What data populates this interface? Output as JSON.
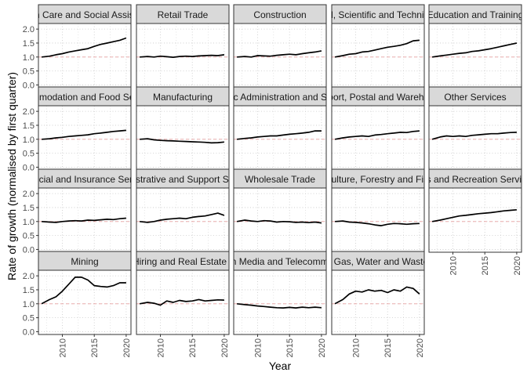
{
  "chart_data": {
    "type": "line",
    "facet": "wrap",
    "ncol": 5,
    "xlabel": "Year",
    "ylabel": "Rate of growth (normalised by first quarter)",
    "xlim": [
      2006.25,
      2020.75
    ],
    "ylim": [
      -0.1,
      2.2
    ],
    "xticks": [
      2010,
      2015,
      2020
    ],
    "yticks": [
      0.0,
      0.5,
      1.0,
      1.5,
      2.0
    ],
    "ytick_labels": [
      "0.0",
      "0.5",
      "1.0",
      "1.5",
      "2.0"
    ],
    "reference_line": 1.0,
    "grid": true,
    "colors": {
      "line": "#000000",
      "reference": "#e8a0a0",
      "strip": "#d9d9d9",
      "grid": "#c8c8c8"
    },
    "panels": [
      {
        "name": "Health Care and Social Assistance",
        "x": [
          2006.75,
          2008,
          2009,
          2010,
          2011,
          2012,
          2013,
          2014,
          2015,
          2016,
          2017,
          2018,
          2019,
          2020
        ],
        "y": [
          1.0,
          1.03,
          1.08,
          1.12,
          1.18,
          1.22,
          1.26,
          1.3,
          1.38,
          1.45,
          1.5,
          1.55,
          1.6,
          1.68
        ]
      },
      {
        "name": "Retail Trade",
        "x": [
          2006.75,
          2008,
          2009,
          2010,
          2011,
          2012,
          2013,
          2014,
          2015,
          2016,
          2017,
          2018,
          2019,
          2020
        ],
        "y": [
          1.0,
          1.02,
          1.0,
          1.03,
          1.01,
          0.99,
          1.02,
          1.03,
          1.02,
          1.04,
          1.05,
          1.06,
          1.05,
          1.08
        ]
      },
      {
        "name": "Construction",
        "x": [
          2006.75,
          2008,
          2009,
          2010,
          2011,
          2012,
          2013,
          2014,
          2015,
          2016,
          2017,
          2018,
          2019,
          2020
        ],
        "y": [
          1.0,
          1.02,
          1.0,
          1.05,
          1.04,
          1.03,
          1.06,
          1.08,
          1.1,
          1.08,
          1.12,
          1.15,
          1.18,
          1.22
        ]
      },
      {
        "name": "Professional, Scientific and Technical Services",
        "x": [
          2006.75,
          2008,
          2009,
          2010,
          2011,
          2012,
          2013,
          2014,
          2015,
          2016,
          2017,
          2018,
          2019,
          2020
        ],
        "y": [
          1.0,
          1.05,
          1.1,
          1.12,
          1.18,
          1.2,
          1.25,
          1.3,
          1.35,
          1.38,
          1.42,
          1.48,
          1.58,
          1.6
        ]
      },
      {
        "name": "Education and Training",
        "x": [
          2006.75,
          2008,
          2009,
          2010,
          2011,
          2012,
          2013,
          2014,
          2015,
          2016,
          2017,
          2018,
          2019,
          2020
        ],
        "y": [
          1.0,
          1.04,
          1.07,
          1.1,
          1.13,
          1.15,
          1.2,
          1.22,
          1.26,
          1.3,
          1.35,
          1.4,
          1.45,
          1.5
        ]
      },
      {
        "name": "Accommodation and Food Services",
        "x": [
          2006.75,
          2008,
          2009,
          2010,
          2011,
          2012,
          2013,
          2014,
          2015,
          2016,
          2017,
          2018,
          2019,
          2020
        ],
        "y": [
          1.0,
          1.02,
          1.05,
          1.07,
          1.1,
          1.12,
          1.14,
          1.16,
          1.2,
          1.22,
          1.25,
          1.28,
          1.3,
          1.32
        ]
      },
      {
        "name": "Manufacturing",
        "x": [
          2006.75,
          2008,
          2009,
          2010,
          2011,
          2012,
          2013,
          2014,
          2015,
          2016,
          2017,
          2018,
          2019,
          2020
        ],
        "y": [
          1.0,
          1.02,
          0.98,
          0.96,
          0.95,
          0.94,
          0.93,
          0.92,
          0.91,
          0.9,
          0.89,
          0.87,
          0.88,
          0.9
        ]
      },
      {
        "name": "Public Administration and Safety",
        "x": [
          2006.75,
          2008,
          2009,
          2010,
          2011,
          2012,
          2013,
          2014,
          2015,
          2016,
          2017,
          2018,
          2019,
          2020
        ],
        "y": [
          1.0,
          1.03,
          1.05,
          1.08,
          1.1,
          1.12,
          1.12,
          1.15,
          1.18,
          1.2,
          1.22,
          1.25,
          1.3,
          1.3
        ]
      },
      {
        "name": "Transport, Postal and Warehousing",
        "x": [
          2006.75,
          2008,
          2009,
          2010,
          2011,
          2012,
          2013,
          2014,
          2015,
          2016,
          2017,
          2018,
          2019,
          2020
        ],
        "y": [
          1.0,
          1.05,
          1.08,
          1.1,
          1.12,
          1.1,
          1.15,
          1.17,
          1.2,
          1.22,
          1.25,
          1.24,
          1.28,
          1.3
        ]
      },
      {
        "name": "Other Services",
        "x": [
          2006.75,
          2008,
          2009,
          2010,
          2011,
          2012,
          2013,
          2014,
          2015,
          2016,
          2017,
          2018,
          2019,
          2020
        ],
        "y": [
          1.0,
          1.08,
          1.12,
          1.1,
          1.12,
          1.1,
          1.14,
          1.16,
          1.18,
          1.2,
          1.2,
          1.22,
          1.24,
          1.25
        ]
      },
      {
        "name": "Financial and Insurance Services",
        "x": [
          2006.75,
          2008,
          2009,
          2010,
          2011,
          2012,
          2013,
          2014,
          2015,
          2016,
          2017,
          2018,
          2019,
          2020
        ],
        "y": [
          1.0,
          0.98,
          0.97,
          1.0,
          1.02,
          1.03,
          1.02,
          1.05,
          1.04,
          1.06,
          1.08,
          1.07,
          1.1,
          1.12
        ]
      },
      {
        "name": "Administrative and Support Services",
        "x": [
          2006.75,
          2008,
          2009,
          2010,
          2011,
          2012,
          2013,
          2014,
          2015,
          2016,
          2017,
          2018,
          2019,
          2020
        ],
        "y": [
          1.0,
          0.97,
          1.0,
          1.05,
          1.08,
          1.1,
          1.12,
          1.1,
          1.15,
          1.18,
          1.2,
          1.25,
          1.3,
          1.22
        ]
      },
      {
        "name": "Wholesale Trade",
        "x": [
          2006.75,
          2008,
          2009,
          2010,
          2011,
          2012,
          2013,
          2014,
          2015,
          2016,
          2017,
          2018,
          2019,
          2020
        ],
        "y": [
          1.0,
          1.05,
          1.02,
          1.0,
          1.03,
          1.02,
          0.98,
          1.0,
          0.99,
          0.97,
          0.98,
          0.96,
          0.98,
          0.95
        ]
      },
      {
        "name": "Agriculture, Forestry and Fishing",
        "x": [
          2006.75,
          2008,
          2009,
          2010,
          2011,
          2012,
          2013,
          2014,
          2015,
          2016,
          2017,
          2018,
          2019,
          2020
        ],
        "y": [
          1.0,
          1.02,
          0.98,
          0.97,
          0.95,
          0.92,
          0.88,
          0.85,
          0.9,
          0.93,
          0.92,
          0.9,
          0.92,
          0.93
        ]
      },
      {
        "name": "Arts and Recreation Services",
        "x": [
          2006.75,
          2008,
          2009,
          2010,
          2011,
          2012,
          2013,
          2014,
          2015,
          2016,
          2017,
          2018,
          2019,
          2020
        ],
        "y": [
          1.0,
          1.05,
          1.1,
          1.15,
          1.2,
          1.22,
          1.25,
          1.28,
          1.3,
          1.32,
          1.35,
          1.38,
          1.4,
          1.42
        ]
      },
      {
        "name": "Mining",
        "x": [
          2006.75,
          2008,
          2009,
          2010,
          2011,
          2012,
          2013,
          2014,
          2015,
          2016,
          2017,
          2018,
          2019,
          2020
        ],
        "y": [
          1.0,
          1.15,
          1.25,
          1.45,
          1.7,
          1.95,
          1.95,
          1.85,
          1.65,
          1.62,
          1.6,
          1.65,
          1.75,
          1.75
        ]
      },
      {
        "name": "Rental, Hiring and Real Estate Services",
        "x": [
          2006.75,
          2008,
          2009,
          2010,
          2011,
          2012,
          2013,
          2014,
          2015,
          2016,
          2017,
          2018,
          2019,
          2020
        ],
        "y": [
          1.0,
          1.05,
          1.02,
          0.95,
          1.1,
          1.05,
          1.12,
          1.08,
          1.1,
          1.15,
          1.1,
          1.12,
          1.14,
          1.13
        ]
      },
      {
        "name": "Information Media and Telecommunications",
        "x": [
          2006.75,
          2008,
          2009,
          2010,
          2011,
          2012,
          2013,
          2014,
          2015,
          2016,
          2017,
          2018,
          2019,
          2020
        ],
        "y": [
          1.0,
          0.97,
          0.95,
          0.92,
          0.9,
          0.88,
          0.86,
          0.85,
          0.87,
          0.85,
          0.88,
          0.86,
          0.88,
          0.86
        ]
      },
      {
        "name": "Electricity, Gas, Water and Waste Services",
        "x": [
          2006.75,
          2008,
          2009,
          2010,
          2011,
          2012,
          2013,
          2014,
          2015,
          2016,
          2017,
          2018,
          2019,
          2020
        ],
        "y": [
          1.0,
          1.15,
          1.35,
          1.45,
          1.42,
          1.5,
          1.45,
          1.48,
          1.4,
          1.5,
          1.45,
          1.6,
          1.55,
          1.35
        ]
      }
    ]
  }
}
